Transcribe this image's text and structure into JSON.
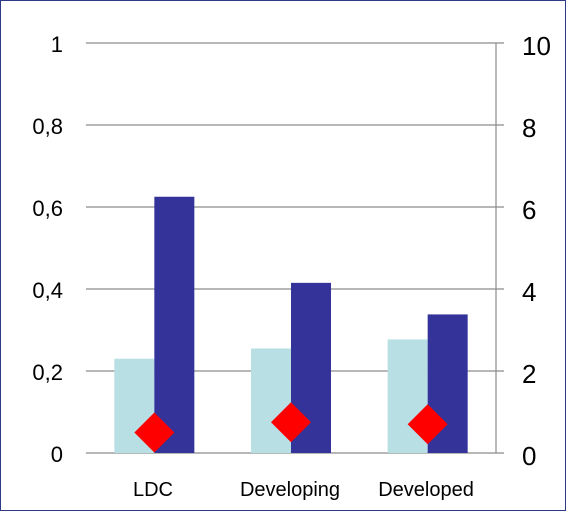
{
  "chart_data": {
    "type": "bar",
    "categories": [
      "LDC",
      "Developing",
      "Developed"
    ],
    "series": [
      {
        "axis": "left",
        "kind": "bar",
        "color": "#b8e0e4",
        "values": [
          0.23,
          0.255,
          0.277
        ]
      },
      {
        "axis": "left",
        "kind": "bar",
        "color": "#333399",
        "values": [
          0.625,
          0.415,
          0.338
        ]
      },
      {
        "axis": "right",
        "kind": "marker",
        "marker": "diamond",
        "color": "#ff0000",
        "values": [
          0.5,
          0.75,
          0.7
        ]
      }
    ],
    "y_left": {
      "min": 0,
      "max": 1,
      "ticks": [
        "0",
        "0,2",
        "0,4",
        "0,6",
        "0,8",
        "1"
      ]
    },
    "y_right": {
      "min": 0,
      "max": 10,
      "ticks": [
        "0",
        "2",
        "4",
        "6",
        "8",
        "10"
      ]
    },
    "grid": true,
    "legend": "none",
    "title": "",
    "xlabel": "",
    "ylabel": ""
  },
  "colors": {
    "frame": "#2e3a87",
    "grid": "#8c8c8c"
  }
}
